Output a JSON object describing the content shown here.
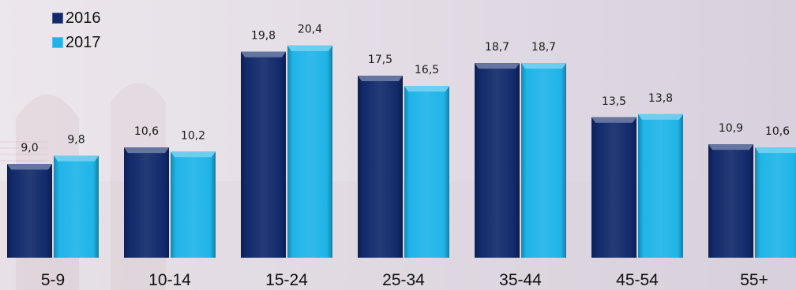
{
  "chart_data": {
    "type": "bar",
    "categories": [
      "5-9",
      "10-14",
      "15-24",
      "25-34",
      "35-44",
      "45-54",
      "55+"
    ],
    "series": [
      {
        "name": "2016",
        "color": "#122a6b",
        "values": [
          9.0,
          10.6,
          19.8,
          17.5,
          18.7,
          13.5,
          10.9
        ],
        "labels": [
          "9,0",
          "10,6",
          "19,8",
          "17,5",
          "18,7",
          "13,5",
          "10,9"
        ]
      },
      {
        "name": "2017",
        "color": "#1fb4e8",
        "values": [
          9.8,
          10.2,
          20.4,
          16.5,
          18.7,
          13.8,
          10.6
        ],
        "labels": [
          "9,8",
          "10,2",
          "20,4",
          "16,5",
          "18,7",
          "13,8",
          "10,6"
        ]
      }
    ],
    "title": "",
    "xlabel": "",
    "ylabel": "",
    "ylim": [
      0,
      21
    ],
    "grid": false,
    "legend_position": "top-left"
  }
}
